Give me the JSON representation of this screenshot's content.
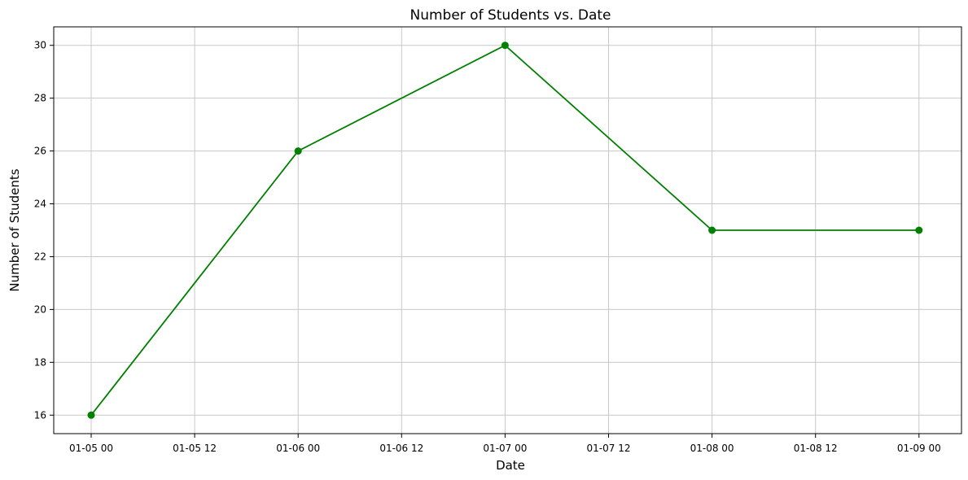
{
  "chart_data": {
    "type": "line",
    "title": "Number of Students vs. Date",
    "xlabel": "Date",
    "ylabel": "Number of Students",
    "x": [
      "2024-01-05",
      "2024-01-06",
      "2024-01-07",
      "2024-01-08",
      "2024-01-09"
    ],
    "series": [
      {
        "values": [
          16,
          26,
          30,
          23,
          23
        ],
        "color": "#008000",
        "marker": "circle"
      }
    ],
    "xticks": [
      "01-05 00",
      "01-05 12",
      "01-06 00",
      "01-06 12",
      "01-07 00",
      "01-07 12",
      "01-08 00",
      "01-08 12",
      "01-09 00"
    ],
    "yticks": [
      16,
      18,
      20,
      22,
      24,
      26,
      28,
      30
    ],
    "xlim": [
      "01-04 19",
      "01-09 05"
    ],
    "ylim": [
      15.3,
      30.7
    ],
    "grid": true,
    "legend": "none"
  }
}
